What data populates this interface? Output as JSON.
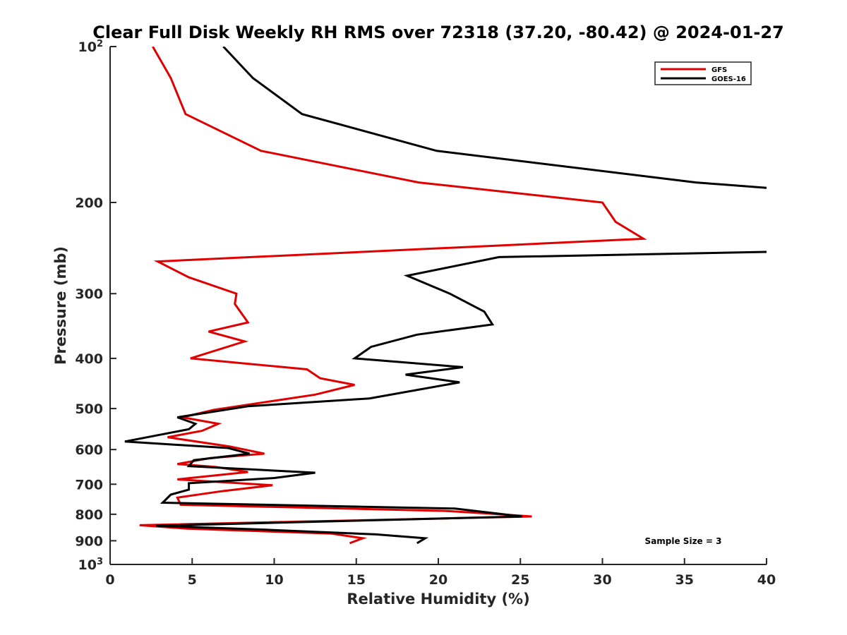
{
  "chart_data": {
    "type": "line",
    "title": "Clear Full Disk Weekly RH RMS over 72318 (37.20, -80.42) @ 2024-01-27",
    "xlabel": "Relative Humidity (%)",
    "ylabel": "Pressure (mb)",
    "xlim": [
      0,
      40
    ],
    "ylim": [
      100,
      1000
    ],
    "yscale": "log",
    "y_reversed": true,
    "grid": false,
    "legend_position": "top-right",
    "x_ticks": [
      0,
      5,
      10,
      15,
      20,
      25,
      30,
      35,
      40
    ],
    "y_ticks": [
      100,
      200,
      300,
      400,
      500,
      600,
      700,
      800,
      900,
      1000
    ],
    "y_tick_labels": [
      {
        "base": "10",
        "exp": "2"
      },
      {
        "base": "200"
      },
      {
        "base": "300"
      },
      {
        "base": "400"
      },
      {
        "base": "500"
      },
      {
        "base": "600"
      },
      {
        "base": "700"
      },
      {
        "base": "800"
      },
      {
        "base": "900"
      },
      {
        "base": "10",
        "exp": "3"
      }
    ],
    "annotation": "Sample Size = 3",
    "series": [
      {
        "name": "GFS",
        "color": "#e00000",
        "points": [
          [
            2.6,
            100
          ],
          [
            3.7,
            115
          ],
          [
            4.6,
            135
          ],
          [
            9.2,
            159
          ],
          [
            18.8,
            183
          ],
          [
            30.0,
            200
          ],
          [
            30.8,
            218
          ],
          [
            32.5,
            235
          ],
          [
            2.9,
            260
          ],
          [
            4.8,
            279
          ],
          [
            7.7,
            300
          ],
          [
            7.6,
            314
          ],
          [
            8.4,
            341
          ],
          [
            6.0,
            355
          ],
          [
            8.2,
            371
          ],
          [
            4.9,
            400
          ],
          [
            12.0,
            420
          ],
          [
            12.8,
            437
          ],
          [
            14.9,
            450
          ],
          [
            12.5,
            470
          ],
          [
            6.3,
            503
          ],
          [
            4.4,
            520
          ],
          [
            6.6,
            535
          ],
          [
            5.6,
            552
          ],
          [
            3.5,
            568
          ],
          [
            7.3,
            592
          ],
          [
            9.4,
            611
          ],
          [
            6.1,
            623
          ],
          [
            4.1,
            640
          ],
          [
            6.4,
            648
          ],
          [
            8.4,
            663
          ],
          [
            4.1,
            685
          ],
          [
            9.9,
            703
          ],
          [
            6.8,
            722
          ],
          [
            4.1,
            743
          ],
          [
            4.3,
            767
          ],
          [
            20.4,
            788
          ],
          [
            23.0,
            797
          ],
          [
            25.7,
            808
          ],
          [
            1.8,
            840
          ],
          [
            4.7,
            853
          ],
          [
            13.5,
            872
          ],
          [
            15.4,
            890
          ],
          [
            14.6,
            910
          ]
        ]
      },
      {
        "name": "GOES-16",
        "color": "#000000",
        "points": [
          [
            6.9,
            100
          ],
          [
            8.7,
            115
          ],
          [
            11.7,
            135
          ],
          [
            19.9,
            159
          ],
          [
            35.7,
            183
          ],
          [
            40.5,
            188
          ],
          [
            40.5,
            249
          ],
          [
            23.7,
            255
          ],
          [
            18.1,
            277
          ],
          [
            20.7,
            300
          ],
          [
            22.8,
            325
          ],
          [
            23.3,
            344
          ],
          [
            18.7,
            360
          ],
          [
            15.9,
            380
          ],
          [
            14.9,
            400
          ],
          [
            21.5,
            416
          ],
          [
            18.0,
            430
          ],
          [
            21.3,
            445
          ],
          [
            15.8,
            478
          ],
          [
            8.4,
            495
          ],
          [
            4.1,
            520
          ],
          [
            5.2,
            535
          ],
          [
            4.8,
            548
          ],
          [
            0.9,
            579
          ],
          [
            7.2,
            596
          ],
          [
            8.5,
            611
          ],
          [
            5.1,
            629
          ],
          [
            4.8,
            646
          ],
          [
            12.5,
            665
          ],
          [
            10.0,
            681
          ],
          [
            4.8,
            697
          ],
          [
            4.8,
            717
          ],
          [
            3.7,
            733
          ],
          [
            3.2,
            760
          ],
          [
            21.0,
            780
          ],
          [
            25.1,
            808
          ],
          [
            2.8,
            842
          ],
          [
            9.5,
            857
          ],
          [
            16.2,
            875
          ],
          [
            19.2,
            890
          ],
          [
            18.7,
            910
          ]
        ]
      }
    ]
  }
}
